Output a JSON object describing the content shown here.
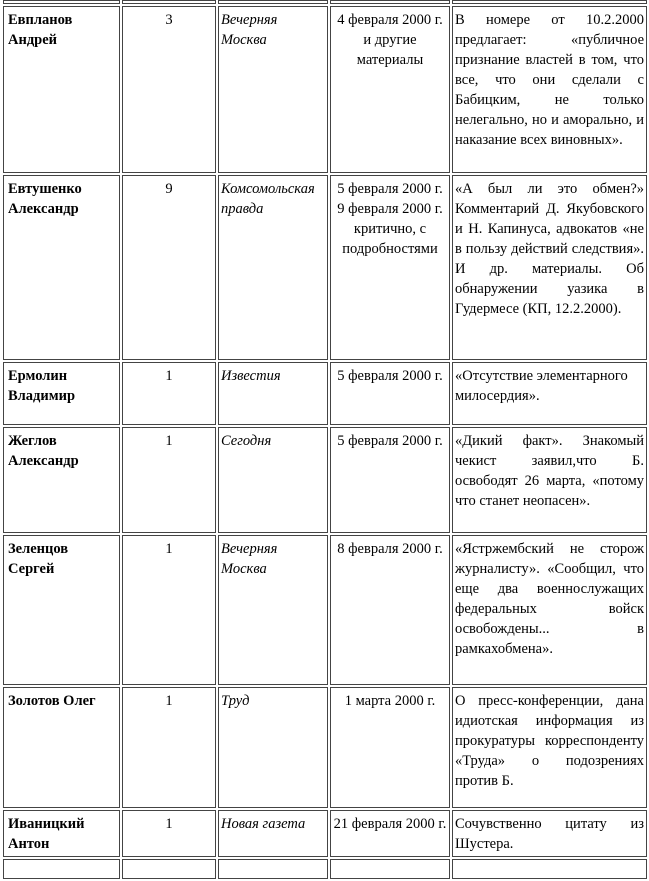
{
  "rows": [
    {
      "name": "Евпланов Андрей",
      "count": "3",
      "paper": "Вечерняя Москва",
      "date": "4 февраля 2000 г. и другие материалы",
      "note": "В номере от 10.2.2000 предлагает: «публичное признание властей в том, что все, что они сделали с Бабицким, не только нелегально, но и аморально, и наказание всех виновных»."
    },
    {
      "name": "Евтушенко Александр",
      "count": "9",
      "paper": "Комсомольская правда",
      "date": "5 февраля 2000 г.",
      "date2": "9 февраля 2000 г. критично, с подробностями",
      "note": "«А был ли это обмен?» Комментарий Д. Якубовского и Н. Капинуса, адвокатов «не в пользу действий следствия». И др. материалы. Об обнаружении уазика в Гудермесе (КП, 12.2.2000)."
    },
    {
      "name": "Ермолин Владимир",
      "count": "1",
      "paper": "Известия",
      "date": "5 февраля 2000 г.",
      "note": "«Отсутствие элементарного милосердия»."
    },
    {
      "name": "Жеглов Александр",
      "count": "1",
      "paper": "Сегодня",
      "date": "5 февраля 2000 г.",
      "note": "«Дикий факт». Знакомый чекист заявил,что Б. освободят 26 марта, «потому что станет неопасен»."
    },
    {
      "name": "Зеленцов Сергей",
      "count": "1",
      "paper": "Вечерняя Москва",
      "date": "8 февраля 2000 г.",
      "note": "«Ястржембский не сторож журналисту». «Сообщил, что еще два военнослужащих федеральных войск освобождены... в рамкахобмена»."
    },
    {
      "name": "Золотов Олег",
      "count": "1",
      "paper": "Труд",
      "date": "1 марта 2000 г.",
      "note": "О пресс-конференции, дана идиотская информация из прокуратуры корреспонденту «Труда» о подозрениях против Б."
    },
    {
      "name": "Иваницкий Антон",
      "count": "1",
      "paper": "Новая газета",
      "date": "21 февраля 2000 г.",
      "note": "Сочувственно цитату из Шустера."
    }
  ]
}
